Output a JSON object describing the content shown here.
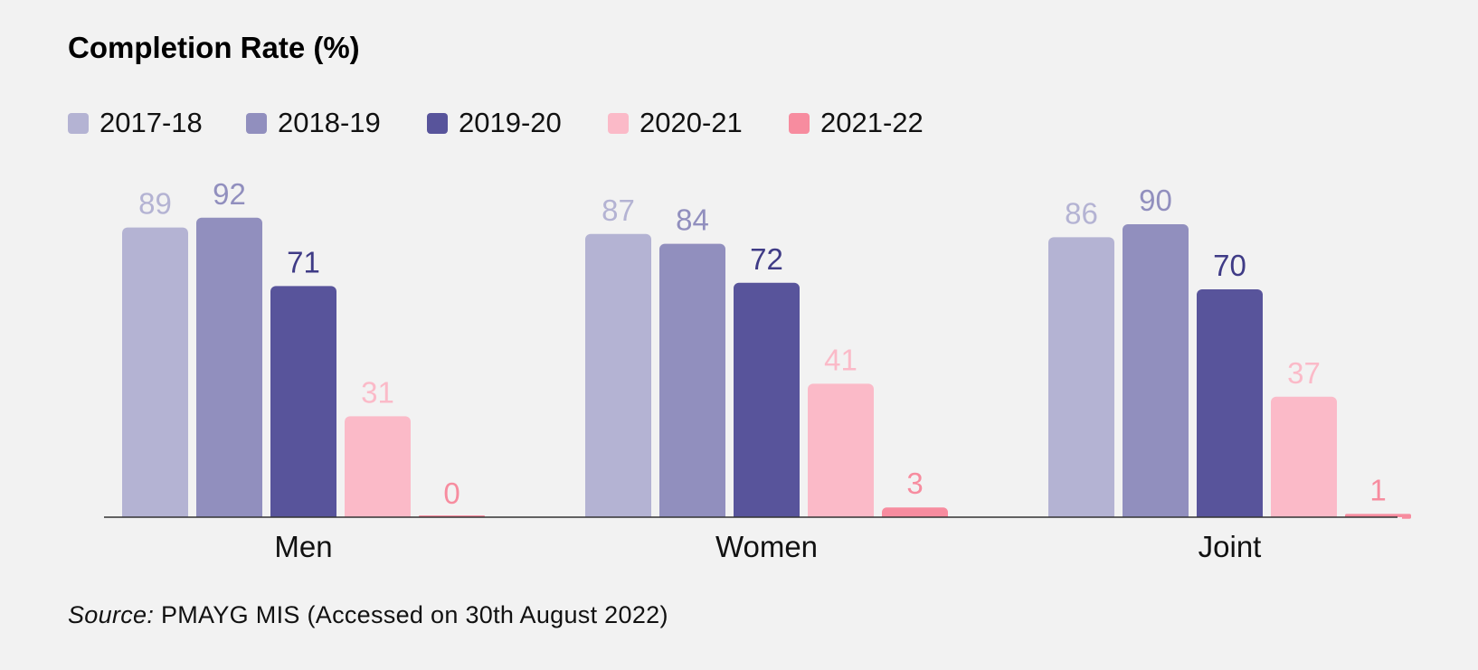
{
  "chart_data": {
    "type": "bar",
    "title": "Completion Rate (%)",
    "categories": [
      "Men",
      "Women",
      "Joint"
    ],
    "series": [
      {
        "name": "2017-18",
        "color": "#b4b3d3",
        "label_color": "#b4b3d3",
        "values": [
          89,
          87,
          86
        ]
      },
      {
        "name": "2018-19",
        "color": "#918fbe",
        "label_color": "#918fbe",
        "values": [
          92,
          84,
          90
        ]
      },
      {
        "name": "2019-20",
        "color": "#58549b",
        "label_color": "#3f3b86",
        "values": [
          71,
          72,
          70
        ]
      },
      {
        "name": "2020-21",
        "color": "#fbbac8",
        "label_color": "#fbbac8",
        "values": [
          31,
          41,
          37
        ]
      },
      {
        "name": "2021-22",
        "color": "#f78c9f",
        "label_color": "#f78c9f",
        "values": [
          0,
          3,
          1
        ]
      }
    ],
    "ylim": [
      0,
      100
    ],
    "grid": false,
    "legend_position": "top-left"
  },
  "source": {
    "prefix": "Source:",
    "text": " PMAYG MIS (Accessed on 30th August 2022)"
  }
}
